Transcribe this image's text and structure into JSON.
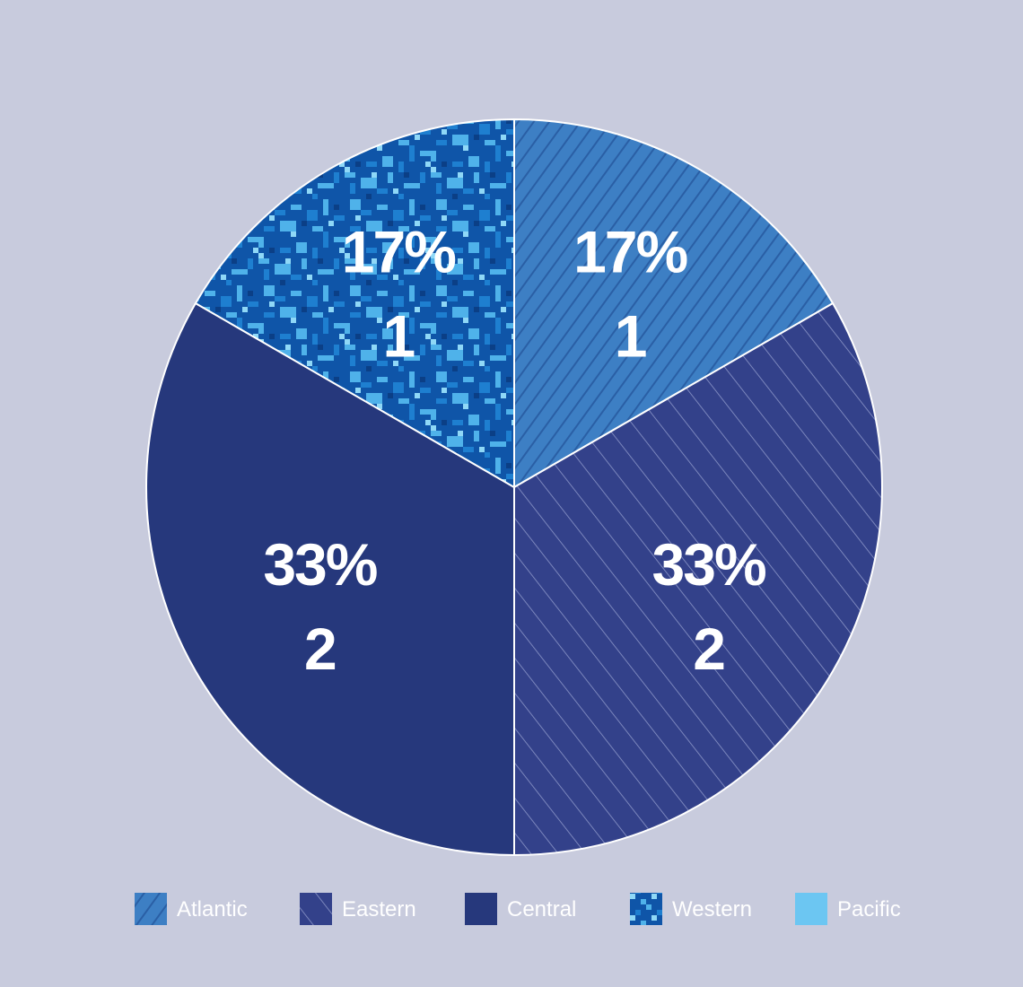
{
  "chart_data": {
    "type": "pie",
    "title": "",
    "slices": [
      {
        "name": "Atlantic",
        "value": 1,
        "percent_label": "17%",
        "count_label": "1",
        "color": "#3d7fc4",
        "pattern": "fine-diagonal-hatch"
      },
      {
        "name": "Eastern",
        "value": 2,
        "percent_label": "33%",
        "count_label": "2",
        "color": "#33418a",
        "pattern": "wide-diagonal-hatch"
      },
      {
        "name": "Central",
        "value": 2,
        "percent_label": "33%",
        "count_label": "2",
        "color": "#26387c",
        "pattern": "solid"
      },
      {
        "name": "Western",
        "value": 1,
        "percent_label": "17%",
        "count_label": "1",
        "color": "#0f55a8",
        "pattern": "digital-camouflage"
      }
    ],
    "legend": {
      "placement": "bottom",
      "entries": [
        {
          "name": "Atlantic",
          "color": "#3d7fc4",
          "pattern": "fine-diagonal-hatch"
        },
        {
          "name": "Eastern",
          "color": "#33418a",
          "pattern": "wide-diagonal-hatch"
        },
        {
          "name": "Central",
          "color": "#26387c",
          "pattern": "solid"
        },
        {
          "name": "Western",
          "color": "#0f55a8",
          "pattern": "digital-camouflage"
        },
        {
          "name": "Pacific",
          "color": "#6cc6f2",
          "pattern": "solid"
        }
      ]
    },
    "background_color": "#c8cbdd",
    "separator_color": "#ffffff"
  }
}
